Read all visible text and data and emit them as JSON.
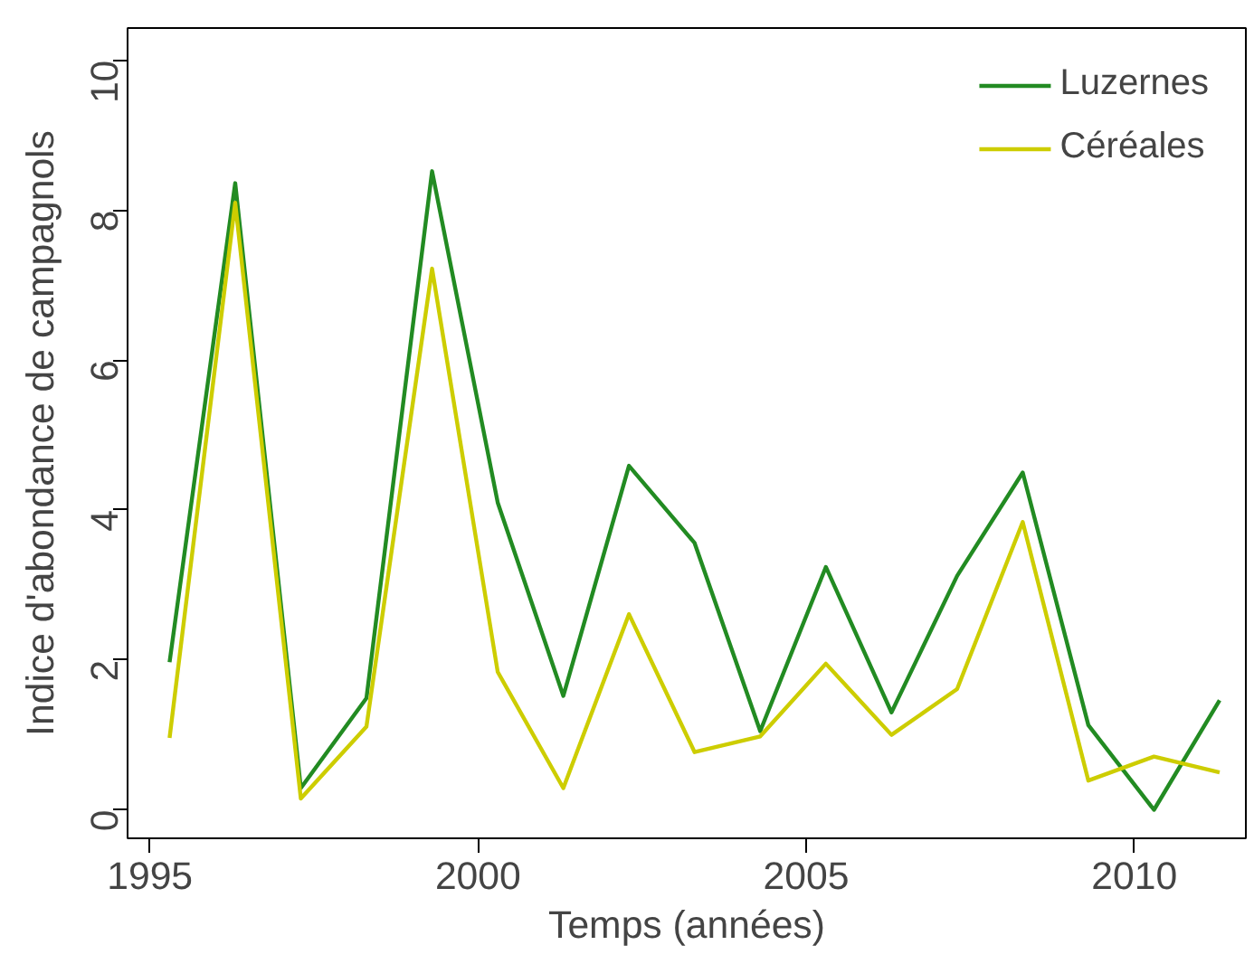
{
  "chart_data": {
    "type": "line",
    "xlabel": "Temps (années)",
    "ylabel": "Indice d'abondance de campagnols",
    "x": [
      1995.3,
      1996.3,
      1997.3,
      1998.3,
      1999.3,
      2000.3,
      2001.3,
      2002.3,
      2003.3,
      2004.3,
      2005.3,
      2006.3,
      2007.3,
      2008.3,
      2009.3,
      2010.3,
      2011.3
    ],
    "series": [
      {
        "name": "Luzernes",
        "color": "#228b22",
        "values": [
          1.97,
          8.36,
          0.29,
          1.49,
          8.52,
          4.1,
          1.52,
          4.59,
          3.56,
          1.05,
          3.24,
          1.3,
          3.12,
          4.5,
          1.13,
          0.0,
          1.46
        ]
      },
      {
        "name": "Céréales",
        "color": "#cdcd00",
        "values": [
          0.96,
          8.1,
          0.15,
          1.11,
          7.22,
          1.84,
          0.29,
          2.61,
          0.77,
          0.98,
          1.95,
          1.0,
          1.61,
          3.84,
          0.39,
          0.71,
          0.5
        ]
      }
    ],
    "xlim": [
      1994.66,
      2011.7
    ],
    "ylim": [
      -0.38,
      10.43
    ],
    "xticks": [
      1995,
      2000,
      2005,
      2010
    ],
    "yticks": [
      0,
      2,
      4,
      6,
      8,
      10
    ],
    "grid": false,
    "legend": "top right",
    "marker": "none",
    "line_style": "solid"
  }
}
